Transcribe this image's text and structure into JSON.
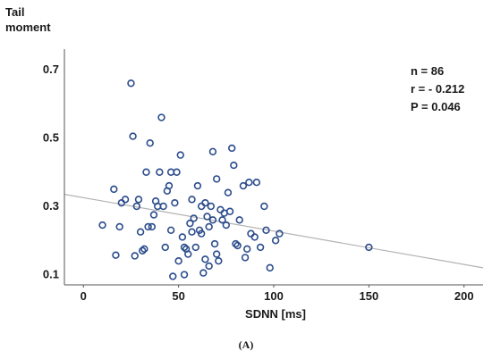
{
  "chart_data": {
    "type": "scatter",
    "ylabel_lines": [
      "Tail",
      "moment"
    ],
    "xlabel": "SDNN [ms]",
    "panel_label": "(A)",
    "xlim": [
      -10,
      210
    ],
    "ylim": [
      0.07,
      0.76
    ],
    "x_ticks": [
      0,
      50,
      100,
      150,
      200
    ],
    "y_ticks": [
      0.1,
      0.3,
      0.5,
      0.7
    ],
    "y_tick_labels": [
      "0.1",
      "0.3",
      "0.5",
      "0.7"
    ],
    "stats": [
      "n = 86",
      "r = - 0.212",
      "P = 0.046"
    ],
    "marker_color": "#2b4c8c",
    "trendline_color": "#b3b3b3",
    "trendline": {
      "x0": -10,
      "y0": 0.335,
      "x1": 210,
      "y1": 0.12
    },
    "points": [
      [
        10,
        0.245
      ],
      [
        16,
        0.35
      ],
      [
        17,
        0.157
      ],
      [
        19,
        0.24
      ],
      [
        20,
        0.31
      ],
      [
        22,
        0.32
      ],
      [
        25,
        0.66
      ],
      [
        26,
        0.505
      ],
      [
        27,
        0.155
      ],
      [
        28,
        0.3
      ],
      [
        29,
        0.32
      ],
      [
        30,
        0.225
      ],
      [
        31,
        0.17
      ],
      [
        32,
        0.175
      ],
      [
        33,
        0.4
      ],
      [
        34,
        0.24
      ],
      [
        35,
        0.485
      ],
      [
        36,
        0.24
      ],
      [
        37,
        0.275
      ],
      [
        38,
        0.315
      ],
      [
        39,
        0.3
      ],
      [
        40,
        0.4
      ],
      [
        41,
        0.56
      ],
      [
        42,
        0.3
      ],
      [
        43,
        0.18
      ],
      [
        44,
        0.345
      ],
      [
        45,
        0.36
      ],
      [
        46,
        0.23
      ],
      [
        46,
        0.4
      ],
      [
        47,
        0.095
      ],
      [
        48,
        0.31
      ],
      [
        49,
        0.4
      ],
      [
        50,
        0.14
      ],
      [
        51,
        0.45
      ],
      [
        52,
        0.21
      ],
      [
        53,
        0.1
      ],
      [
        53,
        0.18
      ],
      [
        54,
        0.175
      ],
      [
        55,
        0.16
      ],
      [
        56,
        0.25
      ],
      [
        57,
        0.225
      ],
      [
        57,
        0.32
      ],
      [
        58,
        0.265
      ],
      [
        59,
        0.18
      ],
      [
        60,
        0.36
      ],
      [
        61,
        0.23
      ],
      [
        62,
        0.3
      ],
      [
        62,
        0.22
      ],
      [
        63,
        0.105
      ],
      [
        64,
        0.145
      ],
      [
        64,
        0.31
      ],
      [
        65,
        0.27
      ],
      [
        66,
        0.125
      ],
      [
        66,
        0.24
      ],
      [
        67,
        0.3
      ],
      [
        68,
        0.26
      ],
      [
        68,
        0.46
      ],
      [
        69,
        0.19
      ],
      [
        70,
        0.38
      ],
      [
        70,
        0.16
      ],
      [
        71,
        0.14
      ],
      [
        72,
        0.29
      ],
      [
        73,
        0.26
      ],
      [
        74,
        0.28
      ],
      [
        75,
        0.245
      ],
      [
        76,
        0.34
      ],
      [
        77,
        0.285
      ],
      [
        78,
        0.47
      ],
      [
        79,
        0.42
      ],
      [
        80,
        0.19
      ],
      [
        81,
        0.185
      ],
      [
        82,
        0.26
      ],
      [
        84,
        0.36
      ],
      [
        85,
        0.15
      ],
      [
        86,
        0.175
      ],
      [
        87,
        0.37
      ],
      [
        88,
        0.22
      ],
      [
        90,
        0.21
      ],
      [
        91,
        0.37
      ],
      [
        93,
        0.18
      ],
      [
        95,
        0.3
      ],
      [
        96,
        0.23
      ],
      [
        98,
        0.12
      ],
      [
        101,
        0.2
      ],
      [
        103,
        0.22
      ],
      [
        150,
        0.18
      ]
    ]
  }
}
